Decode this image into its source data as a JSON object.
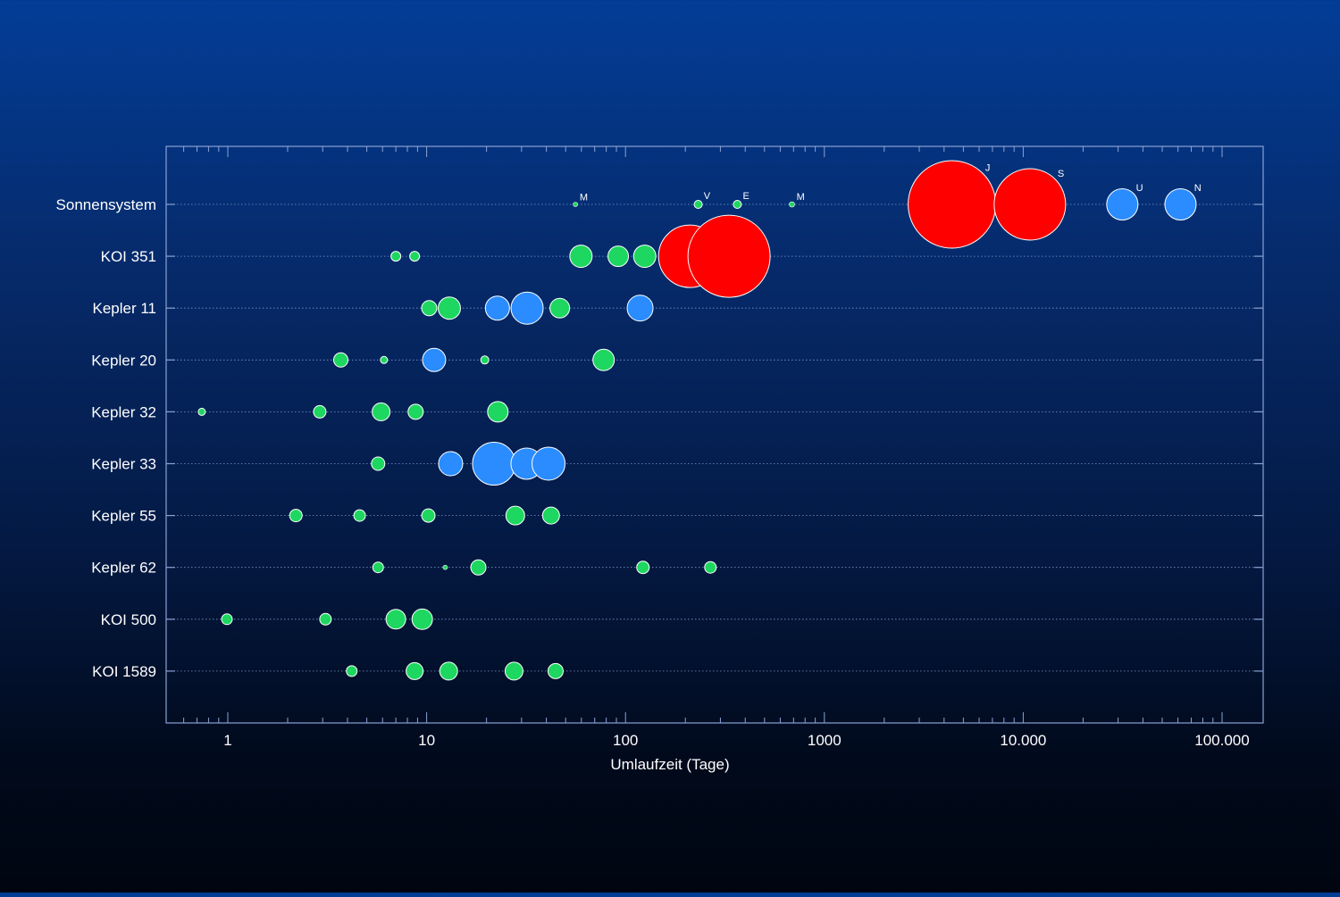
{
  "chart_data": {
    "type": "scatter",
    "xlabel": "Umlaufzeit (Tage)",
    "ylabel": "",
    "x_scale": "log",
    "xlim": [
      0.5,
      200000
    ],
    "x_ticks": [
      {
        "value": 1,
        "label": "1"
      },
      {
        "value": 10,
        "label": "10"
      },
      {
        "value": 100,
        "label": "100"
      },
      {
        "value": 1000,
        "label": "1000"
      },
      {
        "value": 10000,
        "label": "10.000"
      },
      {
        "value": 100000,
        "label": "100.000"
      }
    ],
    "grid": "horizontal dotted lines per system",
    "colors": {
      "green": "#1ed760",
      "blue": "#2a8cff",
      "red": "#ff0000",
      "outline": "#ffffff",
      "frame": "#8aa2d4"
    },
    "systems": [
      {
        "name": "Sonnensystem",
        "planets": [
          {
            "period": 56,
            "radius": 2.5,
            "color": "green",
            "label": "M"
          },
          {
            "period": 232,
            "radius": 4.5,
            "color": "green",
            "label": "V"
          },
          {
            "period": 365,
            "radius": 4.5,
            "color": "green",
            "label": "E"
          },
          {
            "period": 687,
            "radius": 3,
            "color": "green",
            "label": "M"
          },
          {
            "period": 4380,
            "radius": 49,
            "color": "red",
            "label": "J"
          },
          {
            "period": 10800,
            "radius": 40,
            "color": "red",
            "label": "S"
          },
          {
            "period": 31500,
            "radius": 17.5,
            "color": "blue",
            "label": "U"
          },
          {
            "period": 61800,
            "radius": 17.5,
            "color": "blue",
            "label": "N"
          }
        ]
      },
      {
        "name": "KOI 351",
        "planets": [
          {
            "period": 7,
            "radius": 5.5,
            "color": "green"
          },
          {
            "period": 8.7,
            "radius": 5.5,
            "color": "green"
          },
          {
            "period": 59.7,
            "radius": 12.5,
            "color": "green"
          },
          {
            "period": 91.9,
            "radius": 11.5,
            "color": "green"
          },
          {
            "period": 124.9,
            "radius": 12.5,
            "color": "green"
          },
          {
            "period": 210.6,
            "radius": 35,
            "color": "red"
          },
          {
            "period": 331.6,
            "radius": 46,
            "color": "red"
          }
        ]
      },
      {
        "name": "Kepler 11",
        "planets": [
          {
            "period": 10.3,
            "radius": 8.5,
            "color": "green"
          },
          {
            "period": 13,
            "radius": 12.5,
            "color": "green"
          },
          {
            "period": 22.7,
            "radius": 13.5,
            "color": "blue"
          },
          {
            "period": 32,
            "radius": 18,
            "color": "blue"
          },
          {
            "period": 46.7,
            "radius": 11,
            "color": "green"
          },
          {
            "period": 118.4,
            "radius": 14.5,
            "color": "blue"
          }
        ]
      },
      {
        "name": "Kepler 20",
        "planets": [
          {
            "period": 3.7,
            "radius": 8,
            "color": "green"
          },
          {
            "period": 6.1,
            "radius": 4,
            "color": "green"
          },
          {
            "period": 10.9,
            "radius": 13,
            "color": "blue"
          },
          {
            "period": 19.6,
            "radius": 4.5,
            "color": "green"
          },
          {
            "period": 77.6,
            "radius": 12,
            "color": "green"
          }
        ]
      },
      {
        "name": "Kepler 32",
        "planets": [
          {
            "period": 0.74,
            "radius": 4,
            "color": "green"
          },
          {
            "period": 2.9,
            "radius": 7,
            "color": "green"
          },
          {
            "period": 5.9,
            "radius": 10,
            "color": "green"
          },
          {
            "period": 8.8,
            "radius": 8.5,
            "color": "green"
          },
          {
            "period": 22.8,
            "radius": 11.5,
            "color": "green"
          }
        ]
      },
      {
        "name": "Kepler 33",
        "planets": [
          {
            "period": 5.7,
            "radius": 7.5,
            "color": "green"
          },
          {
            "period": 13.2,
            "radius": 13.5,
            "color": "blue"
          },
          {
            "period": 21.8,
            "radius": 24,
            "color": "blue"
          },
          {
            "period": 31.8,
            "radius": 17.5,
            "color": "blue"
          },
          {
            "period": 41,
            "radius": 18.5,
            "color": "blue"
          }
        ]
      },
      {
        "name": "Kepler 55",
        "planets": [
          {
            "period": 2.2,
            "radius": 7,
            "color": "green"
          },
          {
            "period": 4.6,
            "radius": 6.5,
            "color": "green"
          },
          {
            "period": 10.2,
            "radius": 7.5,
            "color": "green"
          },
          {
            "period": 27.9,
            "radius": 10.5,
            "color": "green"
          },
          {
            "period": 42.2,
            "radius": 9.5,
            "color": "green"
          }
        ]
      },
      {
        "name": "Kepler 62",
        "planets": [
          {
            "period": 5.7,
            "radius": 6,
            "color": "green"
          },
          {
            "period": 12.4,
            "radius": 2.5,
            "color": "green"
          },
          {
            "period": 18.2,
            "radius": 8.5,
            "color": "green"
          },
          {
            "period": 122.4,
            "radius": 7,
            "color": "green"
          },
          {
            "period": 267.3,
            "radius": 6.5,
            "color": "green"
          }
        ]
      },
      {
        "name": "KOI 500",
        "planets": [
          {
            "period": 0.99,
            "radius": 6,
            "color": "green"
          },
          {
            "period": 3.1,
            "radius": 6.5,
            "color": "green"
          },
          {
            "period": 7,
            "radius": 11,
            "color": "green"
          },
          {
            "period": 9.5,
            "radius": 11.5,
            "color": "green"
          }
        ]
      },
      {
        "name": "KOI 1589",
        "planets": [
          {
            "period": 4.2,
            "radius": 6,
            "color": "green"
          },
          {
            "period": 8.7,
            "radius": 9.5,
            "color": "green"
          },
          {
            "period": 12.9,
            "radius": 10,
            "color": "green"
          },
          {
            "period": 27.5,
            "radius": 10,
            "color": "green"
          },
          {
            "period": 44.5,
            "radius": 8.5,
            "color": "green"
          }
        ]
      }
    ]
  }
}
